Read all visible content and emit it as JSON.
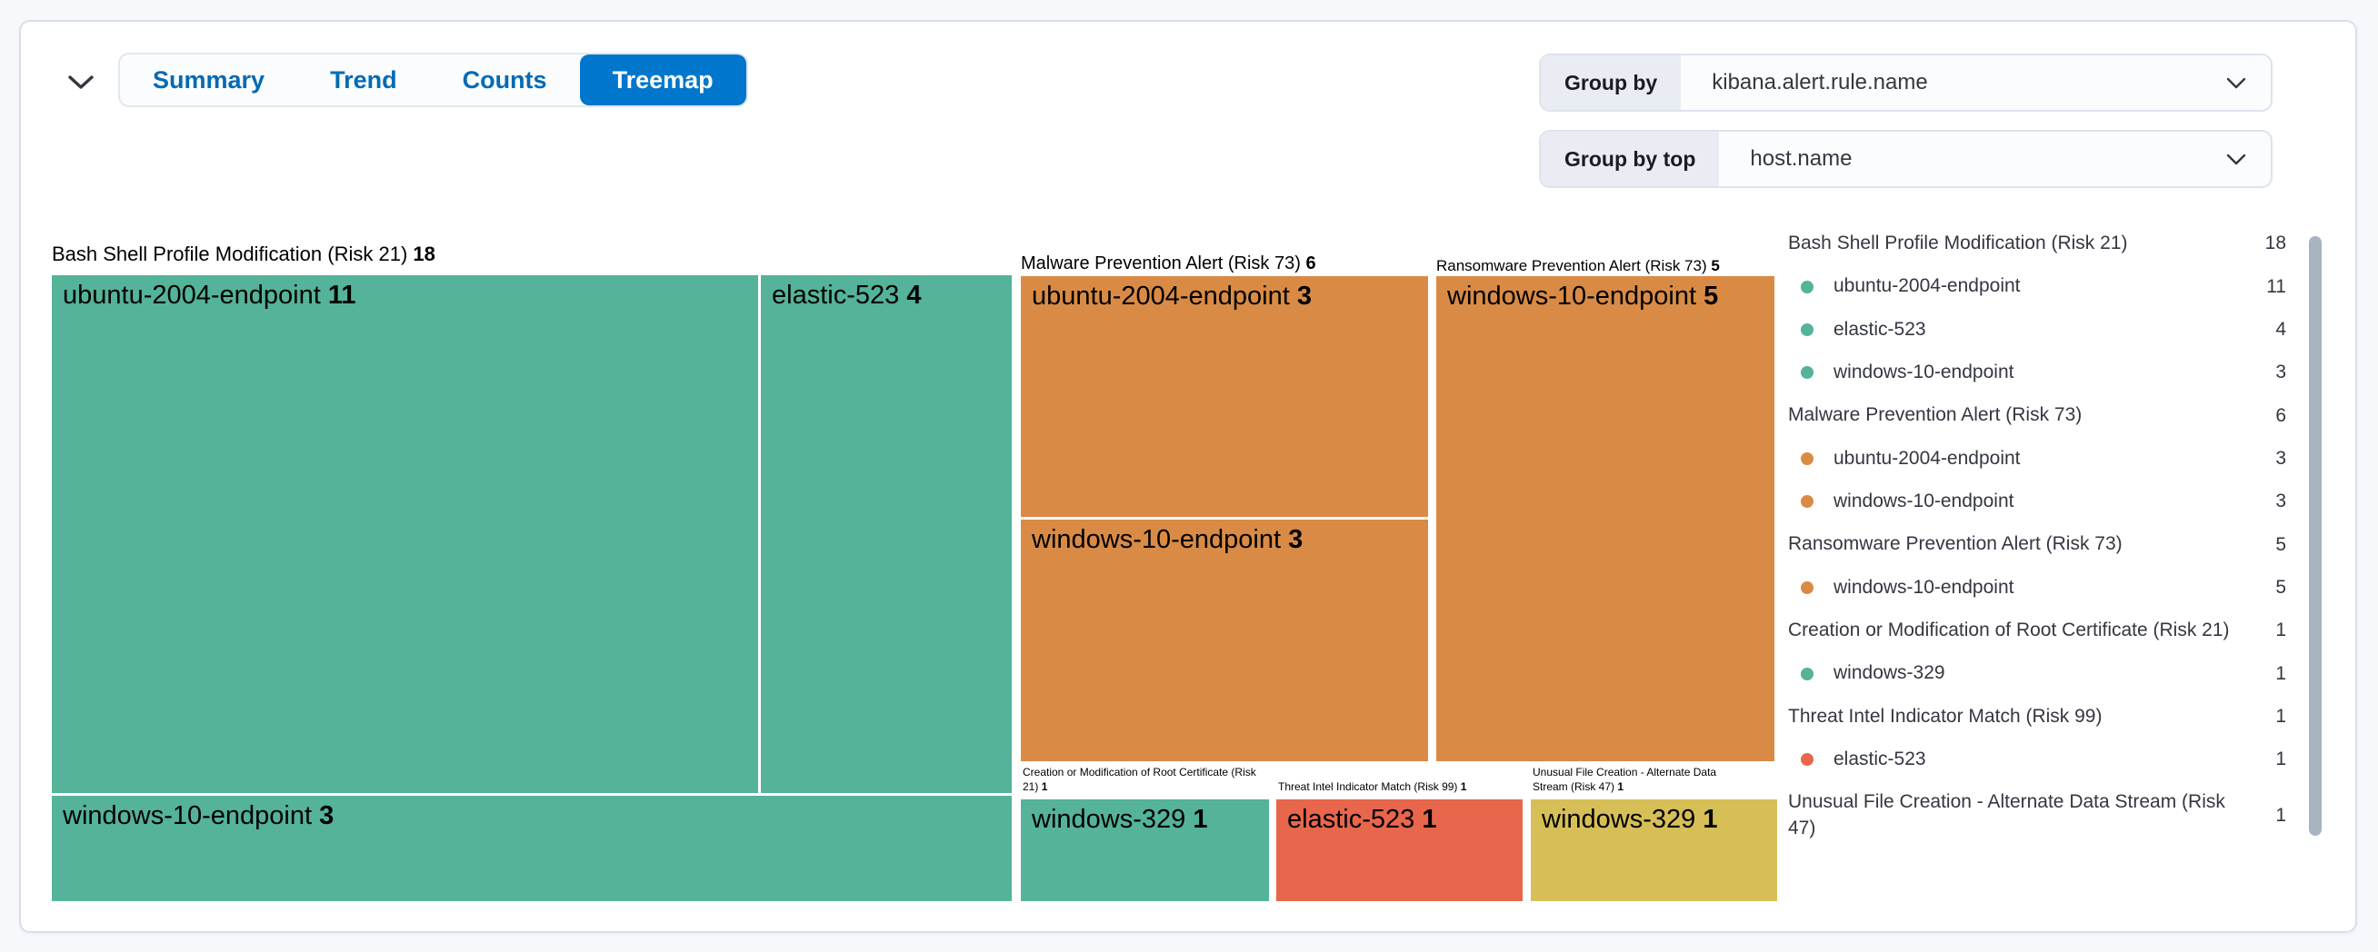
{
  "toolbar": {
    "tabs": [
      {
        "label": "Summary",
        "selected": false
      },
      {
        "label": "Trend",
        "selected": false
      },
      {
        "label": "Counts",
        "selected": false
      },
      {
        "label": "Treemap",
        "selected": true
      }
    ],
    "group_by": {
      "label": "Group by",
      "value": "kibana.alert.rule.name"
    },
    "group_by_top": {
      "label": "Group by top",
      "value": "host.name"
    }
  },
  "colors": {
    "green": "#54B399",
    "orange": "#D98B45",
    "red": "#E7664C",
    "yellow": "#D6BF57",
    "selected_tab_bg": "#0077CC",
    "tab_text": "#006BB4"
  },
  "chart_data": {
    "type": "treemap",
    "group_by_field": "kibana.alert.rule.name",
    "group_by_top_field": "host.name",
    "legend_position": "right",
    "groups": [
      {
        "name": "Bash Shell Profile Modification (Risk 21)",
        "count": 18,
        "color_key": "green",
        "children": [
          {
            "name": "ubuntu-2004-endpoint",
            "count": 11
          },
          {
            "name": "elastic-523",
            "count": 4
          },
          {
            "name": "windows-10-endpoint",
            "count": 3
          }
        ]
      },
      {
        "name": "Malware Prevention Alert (Risk 73)",
        "count": 6,
        "color_key": "orange",
        "children": [
          {
            "name": "ubuntu-2004-endpoint",
            "count": 3
          },
          {
            "name": "windows-10-endpoint",
            "count": 3
          }
        ]
      },
      {
        "name": "Ransomware Prevention Alert (Risk 73)",
        "count": 5,
        "color_key": "orange",
        "children": [
          {
            "name": "windows-10-endpoint",
            "count": 5
          }
        ]
      },
      {
        "name": "Creation or Modification of Root Certificate (Risk 21)",
        "count": 1,
        "color_key": "green",
        "children": [
          {
            "name": "windows-329",
            "count": 1
          }
        ]
      },
      {
        "name": "Threat Intel Indicator Match (Risk 99)",
        "count": 1,
        "color_key": "red",
        "children": [
          {
            "name": "elastic-523",
            "count": 1
          }
        ]
      },
      {
        "name": "Unusual File Creation - Alternate Data Stream (Risk 47)",
        "count": 1,
        "color_key": "yellow",
        "children": [
          {
            "name": "windows-329",
            "count": 1
          }
        ]
      }
    ]
  },
  "legend": {
    "rows": [
      {
        "kind": "rule",
        "label": "Bash Shell Profile Modification (Risk 21)",
        "count": "18"
      },
      {
        "kind": "host",
        "color_key": "green",
        "label": "ubuntu-2004-endpoint",
        "count": "11"
      },
      {
        "kind": "host",
        "color_key": "green",
        "label": "elastic-523",
        "count": "4"
      },
      {
        "kind": "host",
        "color_key": "green",
        "label": "windows-10-endpoint",
        "count": "3"
      },
      {
        "kind": "rule",
        "label": "Malware Prevention Alert (Risk 73)",
        "count": "6"
      },
      {
        "kind": "host",
        "color_key": "orange",
        "label": "ubuntu-2004-endpoint",
        "count": "3"
      },
      {
        "kind": "host",
        "color_key": "orange",
        "label": "windows-10-endpoint",
        "count": "3"
      },
      {
        "kind": "rule",
        "label": "Ransomware Prevention Alert (Risk 73)",
        "count": "5"
      },
      {
        "kind": "host",
        "color_key": "orange",
        "label": "windows-10-endpoint",
        "count": "5"
      },
      {
        "kind": "rule",
        "label": "Creation or Modification of Root Certificate (Risk 21)",
        "count": "1"
      },
      {
        "kind": "host",
        "color_key": "green",
        "label": "windows-329",
        "count": "1"
      },
      {
        "kind": "rule",
        "label": "Threat Intel Indicator Match (Risk 99)",
        "count": "1"
      },
      {
        "kind": "host",
        "color_key": "red",
        "label": "elastic-523",
        "count": "1"
      },
      {
        "kind": "rule",
        "label": "Unusual File Creation - Alternate Data Stream (Risk 47)",
        "count": "1"
      }
    ]
  }
}
